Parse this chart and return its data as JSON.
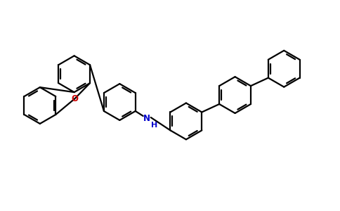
{
  "background_color": "#ffffff",
  "bond_color": "#000000",
  "o_color": "#cc0000",
  "n_color": "#0000cc",
  "line_width": 1.6,
  "dbo": 0.055,
  "figsize": [
    4.84,
    3.0
  ],
  "dpi": 100,
  "xlim": [
    0,
    9.68
  ],
  "ylim": [
    0,
    6.0
  ],
  "r": 0.52
}
